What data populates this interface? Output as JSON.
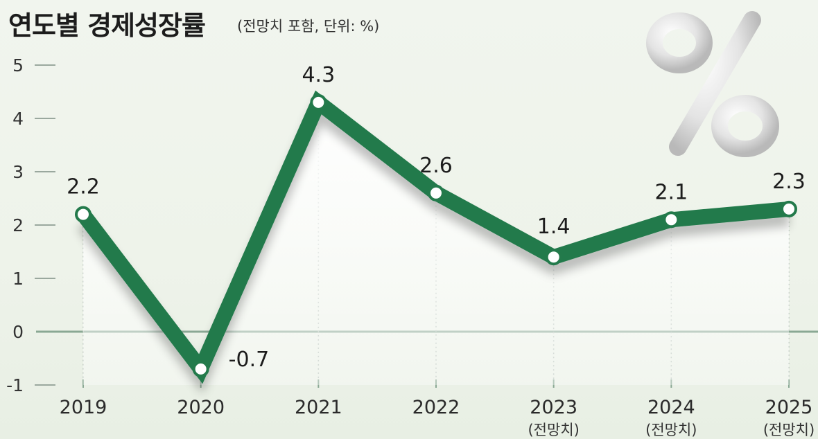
{
  "chart_data": {
    "type": "line",
    "title": "연도별 경제성장률",
    "subtitle": "(전망치 포함, 단위: %)",
    "categories": [
      "2019",
      "2020",
      "2021",
      "2022",
      "2023",
      "2024",
      "2025"
    ],
    "category_notes": [
      "",
      "",
      "",
      "",
      "(전망치)",
      "(전망치)",
      "(전망치)"
    ],
    "series": [
      {
        "values": [
          2.2,
          -0.7,
          4.3,
          2.6,
          1.4,
          2.1,
          2.3
        ]
      }
    ],
    "value_labels": [
      "2.2",
      "-0.7",
      "4.3",
      "2.6",
      "1.4",
      "2.1",
      "2.3"
    ],
    "yticks": [
      "-1",
      "0",
      "1",
      "2",
      "3",
      "4",
      "5"
    ],
    "ylim": [
      -1,
      5
    ],
    "xlabel": "",
    "ylabel": "",
    "grid": false,
    "decoration": "percent-symbol-icon",
    "colors": {
      "line": "#237a4b",
      "marker_fill": "#ffffff",
      "zero_line": "#8aa894",
      "text": "#1c1c1c"
    }
  }
}
